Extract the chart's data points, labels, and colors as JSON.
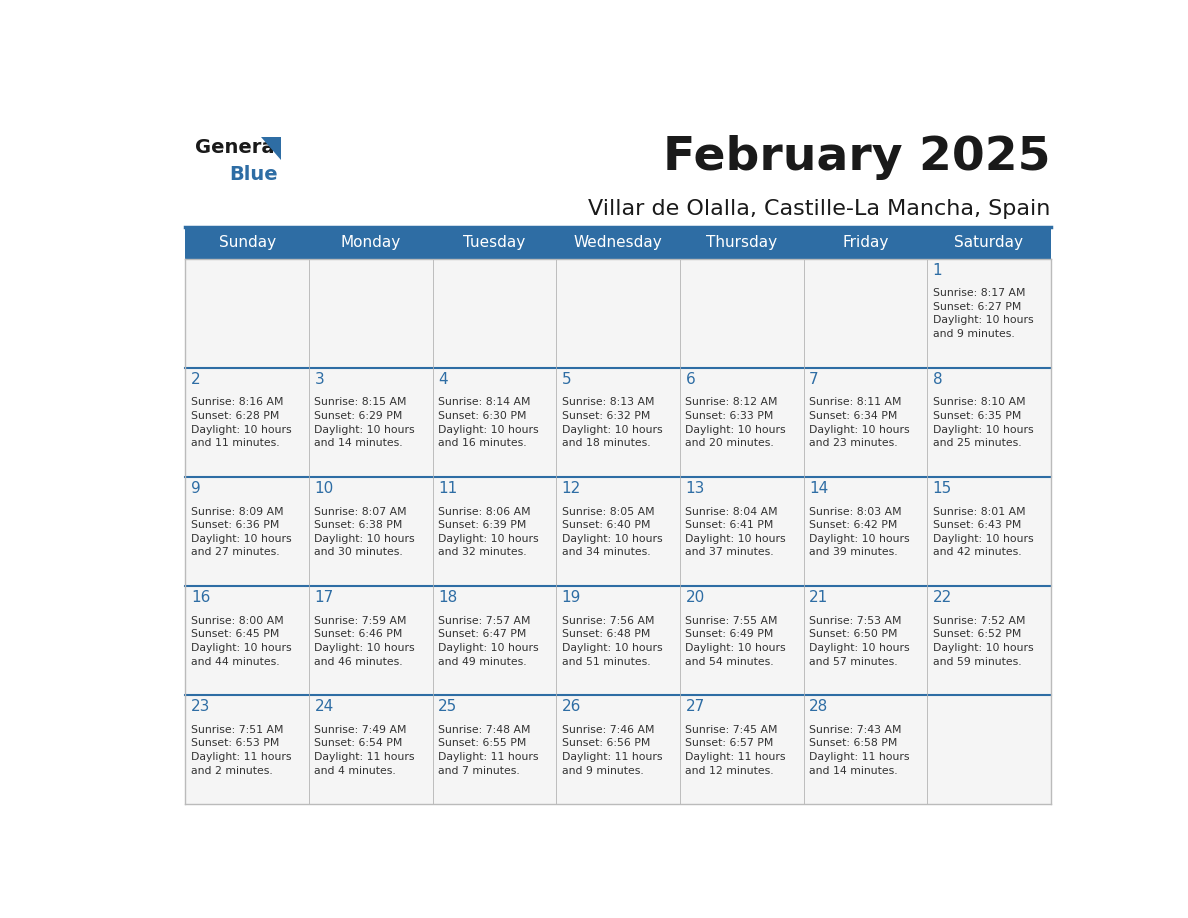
{
  "title": "February 2025",
  "subtitle": "Villar de Olalla, Castille-La Mancha, Spain",
  "header_bg": "#2E6DA4",
  "header_text": "#FFFFFF",
  "cell_bg": "#F5F5F5",
  "day_num_color": "#2E6DA4",
  "text_color": "#333333",
  "border_color": "#BBBBBB",
  "header_line_color": "#2E6DA4",
  "days_of_week": [
    "Sunday",
    "Monday",
    "Tuesday",
    "Wednesday",
    "Thursday",
    "Friday",
    "Saturday"
  ],
  "weeks": [
    [
      {
        "day": null,
        "info": null
      },
      {
        "day": null,
        "info": null
      },
      {
        "day": null,
        "info": null
      },
      {
        "day": null,
        "info": null
      },
      {
        "day": null,
        "info": null
      },
      {
        "day": null,
        "info": null
      },
      {
        "day": 1,
        "info": "Sunrise: 8:17 AM\nSunset: 6:27 PM\nDaylight: 10 hours\nand 9 minutes."
      }
    ],
    [
      {
        "day": 2,
        "info": "Sunrise: 8:16 AM\nSunset: 6:28 PM\nDaylight: 10 hours\nand 11 minutes."
      },
      {
        "day": 3,
        "info": "Sunrise: 8:15 AM\nSunset: 6:29 PM\nDaylight: 10 hours\nand 14 minutes."
      },
      {
        "day": 4,
        "info": "Sunrise: 8:14 AM\nSunset: 6:30 PM\nDaylight: 10 hours\nand 16 minutes."
      },
      {
        "day": 5,
        "info": "Sunrise: 8:13 AM\nSunset: 6:32 PM\nDaylight: 10 hours\nand 18 minutes."
      },
      {
        "day": 6,
        "info": "Sunrise: 8:12 AM\nSunset: 6:33 PM\nDaylight: 10 hours\nand 20 minutes."
      },
      {
        "day": 7,
        "info": "Sunrise: 8:11 AM\nSunset: 6:34 PM\nDaylight: 10 hours\nand 23 minutes."
      },
      {
        "day": 8,
        "info": "Sunrise: 8:10 AM\nSunset: 6:35 PM\nDaylight: 10 hours\nand 25 minutes."
      }
    ],
    [
      {
        "day": 9,
        "info": "Sunrise: 8:09 AM\nSunset: 6:36 PM\nDaylight: 10 hours\nand 27 minutes."
      },
      {
        "day": 10,
        "info": "Sunrise: 8:07 AM\nSunset: 6:38 PM\nDaylight: 10 hours\nand 30 minutes."
      },
      {
        "day": 11,
        "info": "Sunrise: 8:06 AM\nSunset: 6:39 PM\nDaylight: 10 hours\nand 32 minutes."
      },
      {
        "day": 12,
        "info": "Sunrise: 8:05 AM\nSunset: 6:40 PM\nDaylight: 10 hours\nand 34 minutes."
      },
      {
        "day": 13,
        "info": "Sunrise: 8:04 AM\nSunset: 6:41 PM\nDaylight: 10 hours\nand 37 minutes."
      },
      {
        "day": 14,
        "info": "Sunrise: 8:03 AM\nSunset: 6:42 PM\nDaylight: 10 hours\nand 39 minutes."
      },
      {
        "day": 15,
        "info": "Sunrise: 8:01 AM\nSunset: 6:43 PM\nDaylight: 10 hours\nand 42 minutes."
      }
    ],
    [
      {
        "day": 16,
        "info": "Sunrise: 8:00 AM\nSunset: 6:45 PM\nDaylight: 10 hours\nand 44 minutes."
      },
      {
        "day": 17,
        "info": "Sunrise: 7:59 AM\nSunset: 6:46 PM\nDaylight: 10 hours\nand 46 minutes."
      },
      {
        "day": 18,
        "info": "Sunrise: 7:57 AM\nSunset: 6:47 PM\nDaylight: 10 hours\nand 49 minutes."
      },
      {
        "day": 19,
        "info": "Sunrise: 7:56 AM\nSunset: 6:48 PM\nDaylight: 10 hours\nand 51 minutes."
      },
      {
        "day": 20,
        "info": "Sunrise: 7:55 AM\nSunset: 6:49 PM\nDaylight: 10 hours\nand 54 minutes."
      },
      {
        "day": 21,
        "info": "Sunrise: 7:53 AM\nSunset: 6:50 PM\nDaylight: 10 hours\nand 57 minutes."
      },
      {
        "day": 22,
        "info": "Sunrise: 7:52 AM\nSunset: 6:52 PM\nDaylight: 10 hours\nand 59 minutes."
      }
    ],
    [
      {
        "day": 23,
        "info": "Sunrise: 7:51 AM\nSunset: 6:53 PM\nDaylight: 11 hours\nand 2 minutes."
      },
      {
        "day": 24,
        "info": "Sunrise: 7:49 AM\nSunset: 6:54 PM\nDaylight: 11 hours\nand 4 minutes."
      },
      {
        "day": 25,
        "info": "Sunrise: 7:48 AM\nSunset: 6:55 PM\nDaylight: 11 hours\nand 7 minutes."
      },
      {
        "day": 26,
        "info": "Sunrise: 7:46 AM\nSunset: 6:56 PM\nDaylight: 11 hours\nand 9 minutes."
      },
      {
        "day": 27,
        "info": "Sunrise: 7:45 AM\nSunset: 6:57 PM\nDaylight: 11 hours\nand 12 minutes."
      },
      {
        "day": 28,
        "info": "Sunrise: 7:43 AM\nSunset: 6:58 PM\nDaylight: 11 hours\nand 14 minutes."
      },
      {
        "day": null,
        "info": null
      }
    ]
  ]
}
